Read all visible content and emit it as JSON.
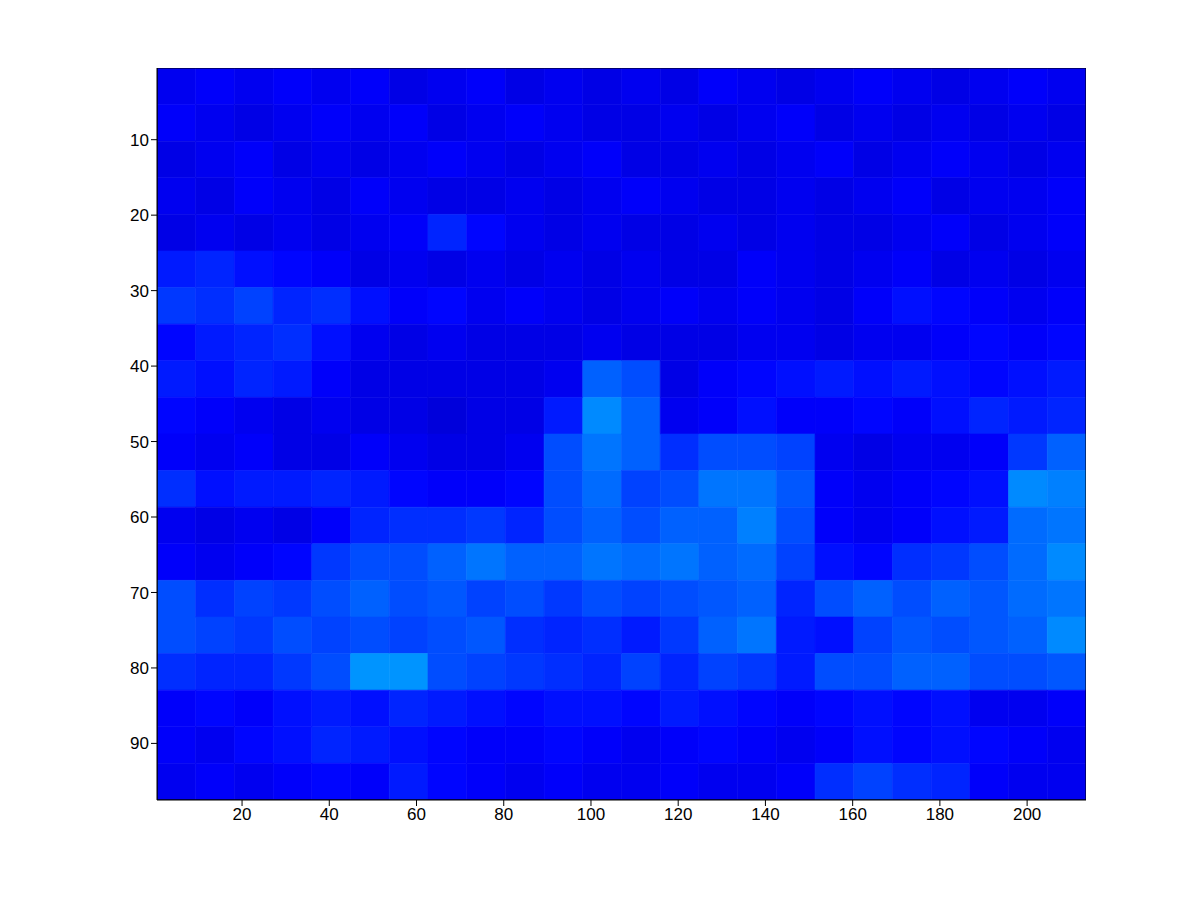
{
  "chart_data": {
    "type": "heatmap",
    "xlim": [
      0.5,
      213.5
    ],
    "ylim": [
      0.5,
      97.5
    ],
    "xticks": [
      20,
      40,
      60,
      80,
      100,
      120,
      140,
      160,
      180,
      200
    ],
    "yticks": [
      10,
      20,
      30,
      40,
      50,
      60,
      70,
      80,
      90
    ],
    "color_range": [
      0,
      1
    ],
    "cells": [
      [
        0.11,
        0.12,
        0.11,
        0.12,
        0.11,
        0.12,
        0.1,
        0.11,
        0.12,
        0.1,
        0.11,
        0.1,
        0.11,
        0.1,
        0.12,
        0.11,
        0.1,
        0.11,
        0.12,
        0.11,
        0.1,
        0.11,
        0.12,
        0.11
      ],
      [
        0.12,
        0.11,
        0.1,
        0.11,
        0.12,
        0.11,
        0.12,
        0.1,
        0.11,
        0.12,
        0.11,
        0.1,
        0.1,
        0.11,
        0.1,
        0.11,
        0.12,
        0.1,
        0.11,
        0.1,
        0.11,
        0.1,
        0.11,
        0.1
      ],
      [
        0.1,
        0.11,
        0.12,
        0.1,
        0.11,
        0.1,
        0.11,
        0.12,
        0.11,
        0.1,
        0.11,
        0.12,
        0.1,
        0.1,
        0.11,
        0.1,
        0.11,
        0.12,
        0.1,
        0.11,
        0.12,
        0.11,
        0.1,
        0.11
      ],
      [
        0.11,
        0.1,
        0.12,
        0.11,
        0.1,
        0.12,
        0.11,
        0.1,
        0.1,
        0.11,
        0.1,
        0.11,
        0.12,
        0.11,
        0.1,
        0.1,
        0.11,
        0.1,
        0.11,
        0.12,
        0.1,
        0.11,
        0.11,
        0.12
      ],
      [
        0.1,
        0.11,
        0.1,
        0.11,
        0.1,
        0.11,
        0.12,
        0.16,
        0.13,
        0.11,
        0.1,
        0.11,
        0.1,
        0.1,
        0.11,
        0.1,
        0.11,
        0.1,
        0.1,
        0.11,
        0.12,
        0.1,
        0.11,
        0.12
      ],
      [
        0.15,
        0.16,
        0.14,
        0.13,
        0.12,
        0.1,
        0.11,
        0.1,
        0.11,
        0.1,
        0.11,
        0.1,
        0.11,
        0.1,
        0.1,
        0.12,
        0.11,
        0.1,
        0.11,
        0.12,
        0.1,
        0.11,
        0.1,
        0.11
      ],
      [
        0.18,
        0.17,
        0.19,
        0.16,
        0.17,
        0.14,
        0.12,
        0.13,
        0.11,
        0.12,
        0.11,
        0.1,
        0.11,
        0.12,
        0.11,
        0.12,
        0.11,
        0.1,
        0.12,
        0.14,
        0.13,
        0.12,
        0.11,
        0.12
      ],
      [
        0.13,
        0.15,
        0.16,
        0.17,
        0.14,
        0.11,
        0.1,
        0.11,
        0.1,
        0.1,
        0.1,
        0.11,
        0.1,
        0.1,
        0.1,
        0.11,
        0.11,
        0.1,
        0.11,
        0.11,
        0.12,
        0.13,
        0.12,
        0.13
      ],
      [
        0.15,
        0.14,
        0.16,
        0.15,
        0.12,
        0.1,
        0.1,
        0.1,
        0.1,
        0.1,
        0.11,
        0.22,
        0.2,
        0.1,
        0.12,
        0.13,
        0.14,
        0.15,
        0.14,
        0.15,
        0.14,
        0.13,
        0.14,
        0.15
      ],
      [
        0.13,
        0.12,
        0.11,
        0.1,
        0.11,
        0.1,
        0.1,
        0.09,
        0.1,
        0.1,
        0.15,
        0.26,
        0.22,
        0.11,
        0.12,
        0.14,
        0.12,
        0.12,
        0.13,
        0.12,
        0.14,
        0.16,
        0.15,
        0.16
      ],
      [
        0.12,
        0.11,
        0.12,
        0.1,
        0.1,
        0.12,
        0.11,
        0.1,
        0.1,
        0.11,
        0.2,
        0.24,
        0.22,
        0.17,
        0.2,
        0.2,
        0.19,
        0.11,
        0.1,
        0.11,
        0.11,
        0.12,
        0.18,
        0.22
      ],
      [
        0.17,
        0.14,
        0.15,
        0.15,
        0.16,
        0.15,
        0.13,
        0.12,
        0.12,
        0.13,
        0.2,
        0.23,
        0.19,
        0.2,
        0.24,
        0.24,
        0.21,
        0.12,
        0.11,
        0.12,
        0.13,
        0.14,
        0.26,
        0.25
      ],
      [
        0.11,
        0.1,
        0.11,
        0.1,
        0.12,
        0.16,
        0.17,
        0.17,
        0.18,
        0.16,
        0.2,
        0.22,
        0.2,
        0.22,
        0.22,
        0.25,
        0.2,
        0.12,
        0.11,
        0.12,
        0.14,
        0.15,
        0.23,
        0.24
      ],
      [
        0.12,
        0.11,
        0.12,
        0.13,
        0.18,
        0.2,
        0.2,
        0.22,
        0.24,
        0.22,
        0.22,
        0.24,
        0.23,
        0.24,
        0.22,
        0.23,
        0.19,
        0.14,
        0.13,
        0.17,
        0.18,
        0.2,
        0.23,
        0.26
      ],
      [
        0.2,
        0.17,
        0.19,
        0.18,
        0.2,
        0.22,
        0.2,
        0.21,
        0.19,
        0.2,
        0.18,
        0.2,
        0.19,
        0.2,
        0.21,
        0.22,
        0.16,
        0.2,
        0.22,
        0.2,
        0.22,
        0.21,
        0.23,
        0.24
      ],
      [
        0.2,
        0.19,
        0.18,
        0.2,
        0.19,
        0.2,
        0.19,
        0.2,
        0.21,
        0.17,
        0.16,
        0.17,
        0.15,
        0.18,
        0.22,
        0.24,
        0.15,
        0.14,
        0.19,
        0.21,
        0.2,
        0.21,
        0.22,
        0.26
      ],
      [
        0.17,
        0.16,
        0.16,
        0.18,
        0.2,
        0.27,
        0.27,
        0.2,
        0.19,
        0.18,
        0.17,
        0.16,
        0.19,
        0.16,
        0.19,
        0.18,
        0.15,
        0.2,
        0.2,
        0.22,
        0.22,
        0.2,
        0.2,
        0.21
      ],
      [
        0.12,
        0.13,
        0.12,
        0.14,
        0.15,
        0.14,
        0.16,
        0.15,
        0.14,
        0.13,
        0.14,
        0.14,
        0.13,
        0.15,
        0.14,
        0.13,
        0.12,
        0.13,
        0.14,
        0.13,
        0.14,
        0.11,
        0.11,
        0.12
      ],
      [
        0.12,
        0.11,
        0.13,
        0.14,
        0.16,
        0.15,
        0.14,
        0.13,
        0.12,
        0.12,
        0.13,
        0.12,
        0.11,
        0.12,
        0.13,
        0.12,
        0.11,
        0.12,
        0.14,
        0.13,
        0.14,
        0.13,
        0.12,
        0.11
      ],
      [
        0.11,
        0.12,
        0.11,
        0.12,
        0.13,
        0.12,
        0.15,
        0.13,
        0.12,
        0.11,
        0.12,
        0.11,
        0.11,
        0.12,
        0.11,
        0.11,
        0.12,
        0.17,
        0.19,
        0.17,
        0.16,
        0.12,
        0.11,
        0.11
      ]
    ]
  }
}
